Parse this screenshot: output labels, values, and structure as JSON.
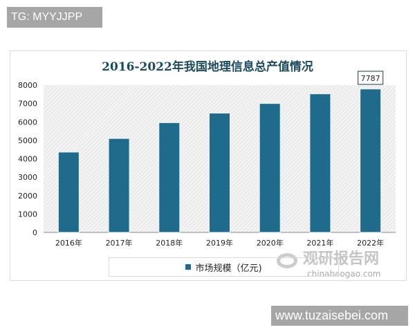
{
  "watermarks": {
    "top_left": "TG: MYYJJPP",
    "bottom_right": "www.tuzaisebei.com",
    "logo_cn": "观研报告网",
    "logo_en": "chinabaogao.com"
  },
  "chart_data": {
    "type": "bar",
    "title": "2016-2022年我国地理信息总产值情况",
    "categories": [
      "2016年",
      "2017年",
      "2018年",
      "2019年",
      "2020年",
      "2021年",
      "2022年"
    ],
    "series": [
      {
        "name": "市场规模（亿元)",
        "values": [
          4360,
          5100,
          5957,
          6476,
          7000,
          7524,
          7787
        ],
        "color": "#1f6b8c"
      }
    ],
    "data_labels": [
      {
        "category": "2022年",
        "text": "7787"
      }
    ],
    "ylim": [
      0,
      8000
    ],
    "yticks": [
      "0",
      "1000",
      "2000",
      "3000",
      "4000",
      "5000",
      "6000",
      "7000",
      "8000"
    ],
    "xlabel": "",
    "ylabel": "",
    "legend": "bottom",
    "background": "hatched"
  }
}
